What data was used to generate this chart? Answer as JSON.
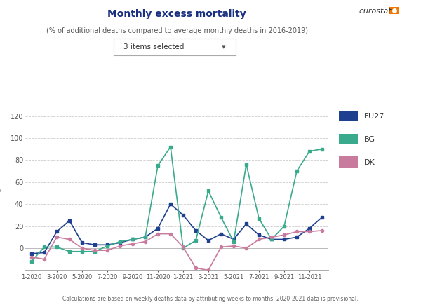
{
  "title": "Monthly excess mortality",
  "subtitle": "(% of additional deaths compared to average monthly deaths in 2016-2019)",
  "dropdown_label": "3 items selected",
  "footer": "Calculations are based on weekly deaths data by attributing weeks to months. 2020-2021 data is provisional.",
  "x_tick_labels": [
    "1-2020",
    "3-2020",
    "5-2020",
    "7-2020",
    "9-2020",
    "11-2020",
    "1-2021",
    "3-2021",
    "5-2021",
    "7-2021",
    "9-2021",
    "11-2021"
  ],
  "x_tick_positions": [
    0,
    2,
    4,
    6,
    8,
    10,
    12,
    14,
    16,
    18,
    20,
    22
  ],
  "EU27": [
    -5,
    -4,
    15,
    25,
    5,
    3,
    3,
    5,
    8,
    10,
    18,
    40,
    30,
    16,
    7,
    13,
    8,
    22,
    12,
    8,
    8,
    10,
    18,
    28
  ],
  "BG": [
    -12,
    1,
    1,
    -3,
    -3,
    -3,
    2,
    6,
    8,
    10,
    75,
    92,
    0,
    7,
    52,
    28,
    6,
    76,
    27,
    8,
    20,
    70,
    88,
    90
  ],
  "DK": [
    -8,
    -10,
    10,
    8,
    0,
    -2,
    -2,
    2,
    4,
    6,
    13,
    13,
    1,
    -18,
    -20,
    1,
    2,
    0,
    8,
    10,
    12,
    15,
    15,
    16
  ],
  "EU27_color": "#1f3f8f",
  "BG_color": "#3aaa8c",
  "DK_color": "#c97b9e",
  "ylim": [
    -20,
    125
  ],
  "yticks": [
    0,
    20,
    40,
    60,
    80,
    100,
    120
  ],
  "grid_color": "#cccccc",
  "background_color": "#ffffff",
  "title_color": "#1a3080",
  "subtitle_color": "#555555",
  "footer_color": "#666666"
}
